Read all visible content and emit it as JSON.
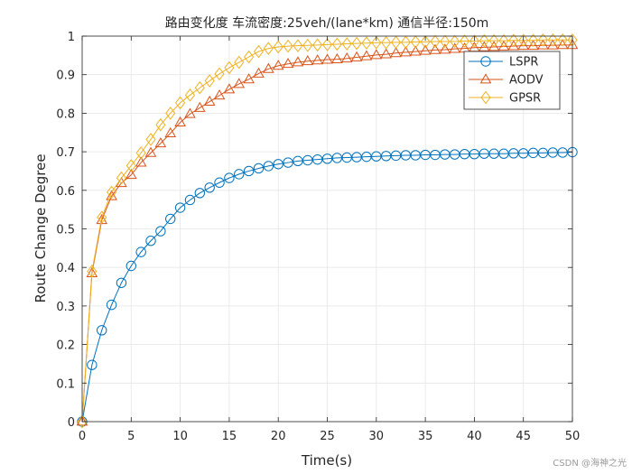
{
  "chart_data": {
    "type": "line",
    "title": "路由变化度 车流密度:25veh/(lane*km) 通信半径:150m",
    "xlabel": "Time(s)",
    "ylabel": "Route Change Degree",
    "xlim": [
      0,
      50
    ],
    "ylim": [
      0,
      1
    ],
    "xticks": [
      0,
      5,
      10,
      15,
      20,
      25,
      30,
      35,
      40,
      45,
      50
    ],
    "yticks": [
      0,
      0.1,
      0.2,
      0.3,
      0.4,
      0.5,
      0.6,
      0.7,
      0.8,
      0.9,
      1
    ],
    "xtick_labels": [
      "0",
      "5",
      "10",
      "15",
      "20",
      "25",
      "30",
      "35",
      "40",
      "45",
      "50"
    ],
    "ytick_labels": [
      "0",
      "0.1",
      "0.2",
      "0.3",
      "0.4",
      "0.5",
      "0.6",
      "0.7",
      "0.8",
      "0.9",
      "1"
    ],
    "grid": true,
    "legend_position": "top-right",
    "x": [
      0,
      1,
      2,
      3,
      4,
      5,
      6,
      7,
      8,
      9,
      10,
      11,
      12,
      13,
      14,
      15,
      16,
      17,
      18,
      19,
      20,
      21,
      22,
      23,
      24,
      25,
      26,
      27,
      28,
      29,
      30,
      31,
      32,
      33,
      34,
      35,
      36,
      37,
      38,
      39,
      40,
      41,
      42,
      43,
      44,
      45,
      46,
      47,
      48,
      49,
      50
    ],
    "series": [
      {
        "name": "LSPR",
        "color": "#0072BD",
        "marker": "circle",
        "values": [
          0,
          0.147,
          0.237,
          0.303,
          0.36,
          0.404,
          0.44,
          0.469,
          0.494,
          0.526,
          0.555,
          0.575,
          0.593,
          0.607,
          0.62,
          0.632,
          0.642,
          0.65,
          0.657,
          0.663,
          0.668,
          0.672,
          0.676,
          0.678,
          0.68,
          0.682,
          0.684,
          0.685,
          0.686,
          0.687,
          0.688,
          0.689,
          0.69,
          0.691,
          0.691,
          0.692,
          0.692,
          0.693,
          0.693,
          0.694,
          0.694,
          0.695,
          0.695,
          0.695,
          0.696,
          0.696,
          0.697,
          0.697,
          0.698,
          0.698,
          0.699
        ]
      },
      {
        "name": "AODV",
        "color": "#D95319",
        "marker": "triangle",
        "values": [
          0,
          0.385,
          0.523,
          0.585,
          0.619,
          0.64,
          0.672,
          0.697,
          0.722,
          0.748,
          0.776,
          0.798,
          0.814,
          0.83,
          0.846,
          0.862,
          0.876,
          0.888,
          0.903,
          0.915,
          0.923,
          0.928,
          0.932,
          0.935,
          0.937,
          0.939,
          0.94,
          0.942,
          0.945,
          0.948,
          0.951,
          0.953,
          0.956,
          0.958,
          0.96,
          0.962,
          0.964,
          0.965,
          0.967,
          0.968,
          0.97,
          0.971,
          0.972,
          0.973,
          0.974,
          0.975,
          0.975,
          0.976,
          0.976,
          0.977,
          0.977
        ]
      },
      {
        "name": "GPSR",
        "color": "#EDB120",
        "marker": "diamond",
        "values": [
          0,
          0.39,
          0.53,
          0.595,
          0.632,
          0.664,
          0.697,
          0.732,
          0.77,
          0.8,
          0.827,
          0.847,
          0.866,
          0.884,
          0.902,
          0.918,
          0.932,
          0.946,
          0.96,
          0.968,
          0.972,
          0.974,
          0.975,
          0.976,
          0.977,
          0.978,
          0.979,
          0.98,
          0.981,
          0.982,
          0.983,
          0.983,
          0.984,
          0.984,
          0.985,
          0.985,
          0.986,
          0.986,
          0.986,
          0.987,
          0.987,
          0.988,
          0.988,
          0.988,
          0.989,
          0.989,
          0.989,
          0.99,
          0.99,
          0.99,
          0.99
        ]
      }
    ]
  },
  "watermark": "CSDN @海神之光"
}
